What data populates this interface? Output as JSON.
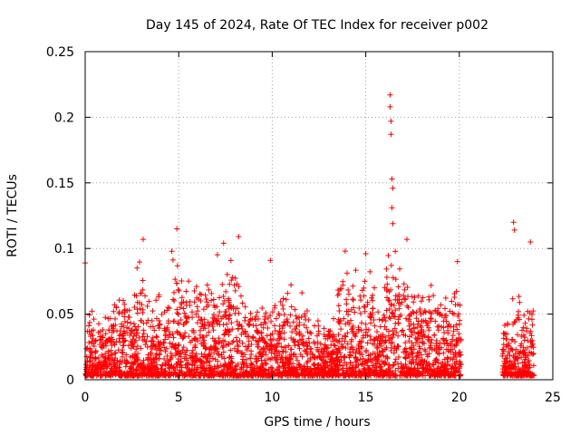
{
  "chart_data": {
    "type": "scatter",
    "title": "Day 145 of 2024, Rate Of TEC Index for receiver p002",
    "xlabel": "GPS time / hours",
    "ylabel": "ROTI / TECUs",
    "xlim": [
      0,
      25
    ],
    "ylim": [
      0,
      0.25
    ],
    "xticks": [
      0,
      5,
      10,
      15,
      20,
      25
    ],
    "xtick_labels": [
      "0",
      "5",
      "10",
      "15",
      "20",
      "25"
    ],
    "yticks": [
      0,
      0.05,
      0.1,
      0.15,
      0.2,
      0.25
    ],
    "ytick_labels": [
      "0",
      "0.05",
      "0.1",
      "0.15",
      "0.2",
      "0.25"
    ],
    "grid": true,
    "marker": "+",
    "color": "#ff0000",
    "data_gap_hours": [
      20.1,
      22.3
    ],
    "notable_points": [
      {
        "x": 0.0,
        "y": 0.089
      },
      {
        "x": 3.1,
        "y": 0.107
      },
      {
        "x": 4.9,
        "y": 0.115
      },
      {
        "x": 7.4,
        "y": 0.104
      },
      {
        "x": 8.2,
        "y": 0.109
      },
      {
        "x": 9.9,
        "y": 0.091
      },
      {
        "x": 13.9,
        "y": 0.098
      },
      {
        "x": 15.0,
        "y": 0.096
      },
      {
        "x": 16.3,
        "y": 0.217
      },
      {
        "x": 16.3,
        "y": 0.208
      },
      {
        "x": 16.35,
        "y": 0.197
      },
      {
        "x": 16.35,
        "y": 0.187
      },
      {
        "x": 16.4,
        "y": 0.153
      },
      {
        "x": 16.45,
        "y": 0.146
      },
      {
        "x": 16.4,
        "y": 0.131
      },
      {
        "x": 16.45,
        "y": 0.119
      },
      {
        "x": 17.2,
        "y": 0.107
      },
      {
        "x": 19.9,
        "y": 0.09
      },
      {
        "x": 22.9,
        "y": 0.12
      },
      {
        "x": 22.95,
        "y": 0.114
      },
      {
        "x": 23.8,
        "y": 0.105
      }
    ],
    "activity_profile": [
      {
        "t0": 0.0,
        "t1": 0.5,
        "level": 0.05
      },
      {
        "t0": 0.5,
        "t1": 1.5,
        "level": 0.045
      },
      {
        "t0": 1.5,
        "t1": 2.7,
        "level": 0.06
      },
      {
        "t0": 2.7,
        "t1": 3.3,
        "level": 0.085
      },
      {
        "t0": 3.3,
        "t1": 4.6,
        "level": 0.06
      },
      {
        "t0": 4.6,
        "t1": 5.2,
        "level": 0.095
      },
      {
        "t0": 5.2,
        "t1": 7.0,
        "level": 0.07
      },
      {
        "t0": 7.0,
        "t1": 8.5,
        "level": 0.085
      },
      {
        "t0": 8.5,
        "t1": 10.5,
        "level": 0.055
      },
      {
        "t0": 10.5,
        "t1": 12.0,
        "level": 0.065
      },
      {
        "t0": 12.0,
        "t1": 13.5,
        "level": 0.04
      },
      {
        "t0": 13.5,
        "t1": 15.5,
        "level": 0.08
      },
      {
        "t0": 15.5,
        "t1": 16.0,
        "level": 0.05
      },
      {
        "t0": 16.0,
        "t1": 16.7,
        "level": 0.095
      },
      {
        "t0": 16.7,
        "t1": 18.0,
        "level": 0.08
      },
      {
        "t0": 18.0,
        "t1": 20.1,
        "level": 0.07
      },
      {
        "t0": 22.3,
        "t1": 22.8,
        "level": 0.04
      },
      {
        "t0": 22.8,
        "t1": 23.3,
        "level": 0.07
      },
      {
        "t0": 23.3,
        "t1": 24.0,
        "level": 0.06
      }
    ]
  }
}
